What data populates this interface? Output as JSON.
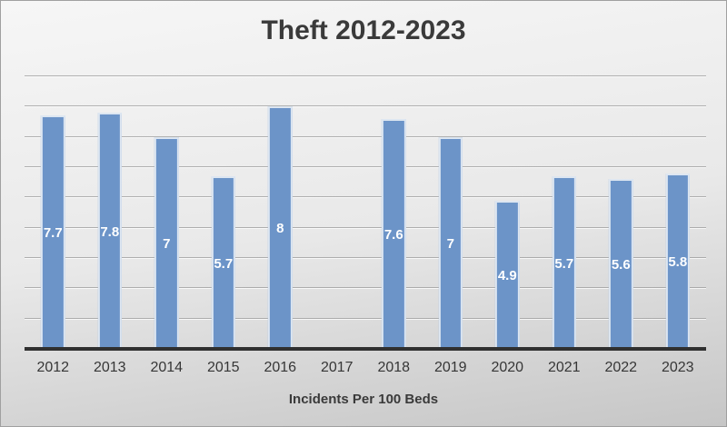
{
  "title": "Theft 2012-2023",
  "xlabel": "Incidents Per 100 Beds",
  "colors": {
    "bg_top": "#f6f6f6",
    "bg_mid": "#e9e9e9",
    "bg_bottom": "#c6c6c6",
    "border_color": "#a0a0a0",
    "title_text": "#3a3a3a",
    "tick_text": "#363636",
    "bar_fill": "#6c94c8",
    "bar_edge": "#dde6f1",
    "axis_line": "#303030",
    "gridline": "#9b9b9b",
    "gridline_highlight": "#ffffff",
    "data_label_text": "#ffffff"
  },
  "chart_data": {
    "type": "bar",
    "title": "Theft 2012-2023",
    "xlabel": "Incidents Per 100 Beds",
    "ylabel": "",
    "categories": [
      "2012",
      "2013",
      "2014",
      "2015",
      "2016",
      "2017",
      "2018",
      "2019",
      "2020",
      "2021",
      "2022",
      "2023"
    ],
    "values": [
      7.7,
      7.8,
      7,
      5.7,
      8,
      null,
      7.6,
      7,
      4.9,
      5.7,
      5.6,
      5.8
    ],
    "ylim": [
      0,
      9
    ],
    "gridline_interval": 1,
    "grid": true,
    "legend": false,
    "y_axis_tick_labels_visible": false,
    "data_labels_position": "inside-center"
  }
}
